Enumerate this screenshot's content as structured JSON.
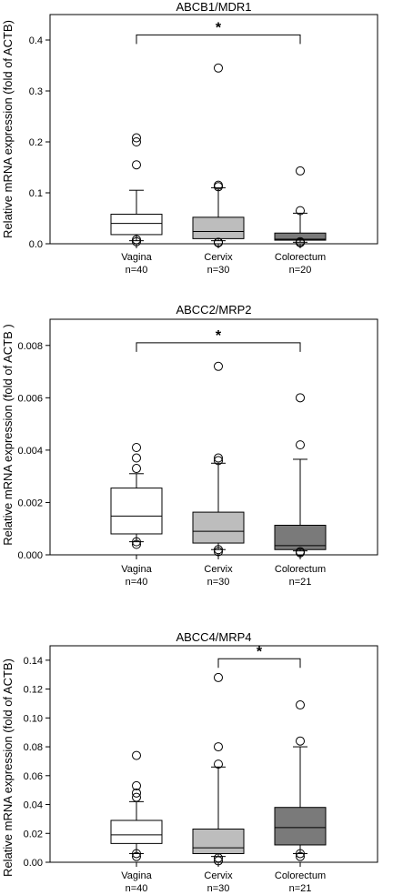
{
  "chart_data": [
    {
      "type": "box",
      "title": "ABCB1/MDR1",
      "ylabel": "Relative mRNA expression (fold of ACTB)",
      "ylim": [
        0,
        0.45
      ],
      "yticks": [
        0.0,
        0.1,
        0.2,
        0.3,
        0.4
      ],
      "ytick_labels": [
        "0.0",
        "0.1",
        "0.2",
        "0.3",
        "0.4"
      ],
      "categories": [
        "Vagina",
        "Cervix",
        "Colorectum"
      ],
      "n_labels": [
        "n=40",
        "n=30",
        "n=20"
      ],
      "colors": [
        "#ffffff",
        "#bdbdbd",
        "#7a7a7a"
      ],
      "boxes": [
        {
          "whisker_low": 0.006,
          "q1": 0.018,
          "median": 0.04,
          "q3": 0.058,
          "whisker_high": 0.105,
          "outliers": [
            0.004,
            0.008,
            0.155,
            0.2,
            0.208
          ]
        },
        {
          "whisker_low": 0.006,
          "q1": 0.01,
          "median": 0.024,
          "q3": 0.052,
          "whisker_high": 0.11,
          "outliers": [
            0.002,
            0.003,
            0.112,
            0.115,
            0.345
          ]
        },
        {
          "whisker_low": 0.003,
          "q1": 0.007,
          "median": 0.009,
          "q3": 0.021,
          "whisker_high": 0.06,
          "outliers": [
            0.002,
            0.004,
            0.065,
            0.143
          ]
        }
      ],
      "significance": {
        "from": 0,
        "to": 2,
        "y": 0.41,
        "label": "*"
      }
    },
    {
      "type": "box",
      "title": "ABCC2/MRP2",
      "ylabel": "Relative mRNA expression (fold of ACTB )",
      "ylim": [
        0,
        0.009
      ],
      "yticks": [
        0.0,
        0.002,
        0.004,
        0.006,
        0.008
      ],
      "ytick_labels": [
        "0.000",
        "0.002",
        "0.004",
        "0.006",
        "0.008"
      ],
      "categories": [
        "Vagina",
        "Cervix",
        "Colorectum"
      ],
      "n_labels": [
        "n=40",
        "n=30",
        "n=21"
      ],
      "colors": [
        "#ffffff",
        "#bdbdbd",
        "#7a7a7a"
      ],
      "boxes": [
        {
          "whisker_low": 0.0005,
          "q1": 0.0008,
          "median": 0.00148,
          "q3": 0.00255,
          "whisker_high": 0.0031,
          "outliers": [
            0.0004,
            0.0005,
            0.0033,
            0.0037,
            0.0041
          ]
        },
        {
          "whisker_low": 0.0002,
          "q1": 0.00045,
          "median": 0.0009,
          "q3": 0.00163,
          "whisker_high": 0.0035,
          "outliers": [
            0.00012,
            0.0002,
            0.0036,
            0.0037,
            0.0072
          ]
        },
        {
          "whisker_low": 0.00015,
          "q1": 0.0002,
          "median": 0.00035,
          "q3": 0.00113,
          "whisker_high": 0.00365,
          "outliers": [
            8e-05,
            0.00012,
            0.0042,
            0.006
          ]
        }
      ],
      "significance": {
        "from": 0,
        "to": 2,
        "y": 0.0081,
        "label": "*"
      }
    },
    {
      "type": "box",
      "title": "ABCC4/MRP4",
      "ylabel": "Relative mRNA expression (fold of ACTB)",
      "ylim": [
        0,
        0.15
      ],
      "yticks": [
        0.0,
        0.02,
        0.04,
        0.06,
        0.08,
        0.1,
        0.12,
        0.14
      ],
      "ytick_labels": [
        "0.00",
        "0.02",
        "0.04",
        "0.06",
        "0.08",
        "0.10",
        "0.12",
        "0.14"
      ],
      "categories": [
        "Vagina",
        "Cervix",
        "Colorectum"
      ],
      "n_labels": [
        "n=40",
        "n=30",
        "n=21"
      ],
      "colors": [
        "#ffffff",
        "#bdbdbd",
        "#7a7a7a"
      ],
      "boxes": [
        {
          "whisker_low": 0.006,
          "q1": 0.013,
          "median": 0.019,
          "q3": 0.029,
          "whisker_high": 0.042,
          "outliers": [
            0.004,
            0.006,
            0.045,
            0.048,
            0.053,
            0.074
          ]
        },
        {
          "whisker_low": 0.004,
          "q1": 0.006,
          "median": 0.01,
          "q3": 0.023,
          "whisker_high": 0.066,
          "outliers": [
            0.001,
            0.003,
            0.068,
            0.08,
            0.128
          ]
        },
        {
          "whisker_low": 0.006,
          "q1": 0.012,
          "median": 0.024,
          "q3": 0.038,
          "whisker_high": 0.08,
          "outliers": [
            0.004,
            0.006,
            0.084,
            0.109
          ]
        }
      ],
      "significance": {
        "from": 1,
        "to": 2,
        "y": 0.141,
        "label": "*"
      }
    }
  ]
}
